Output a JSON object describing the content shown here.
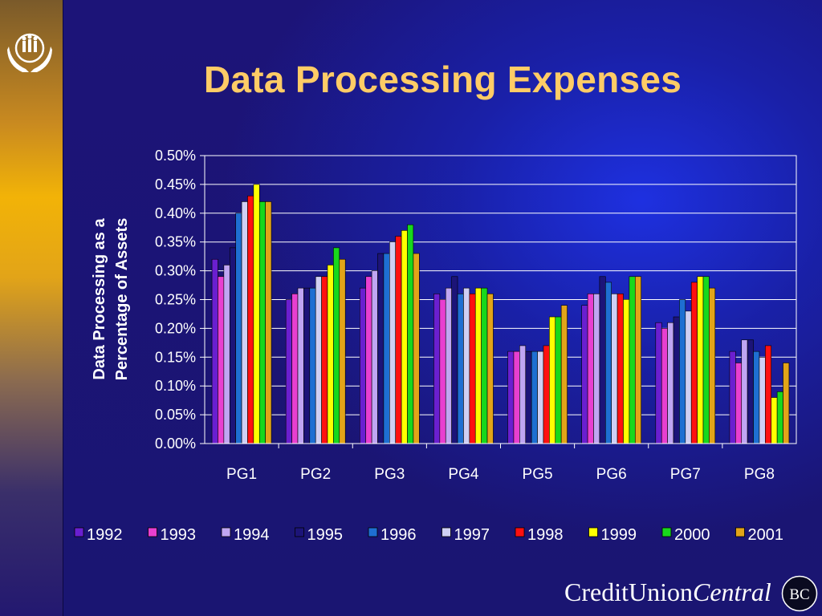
{
  "slide": {
    "title": "Data Processing Expenses",
    "brand_part1": "CreditUnion",
    "brand_part2": "Central",
    "brand_badge": "BC",
    "logo_icon": "hands-family-icon"
  },
  "chart_data": {
    "type": "bar",
    "title": "",
    "xlabel": "",
    "ylabel": "Data Processing as a Percentage of Assets",
    "ylabel_lines": [
      "Data Processing as a",
      "Percentage of Assets"
    ],
    "ylim": [
      0,
      0.5
    ],
    "ytick_step": 0.05,
    "ytick_labels": [
      "0.00%",
      "0.05%",
      "0.10%",
      "0.15%",
      "0.20%",
      "0.25%",
      "0.30%",
      "0.35%",
      "0.40%",
      "0.45%",
      "0.50%"
    ],
    "grid": "horizontal",
    "legend_position": "bottom",
    "categories": [
      "PG1",
      "PG2",
      "PG3",
      "PG4",
      "PG5",
      "PG6",
      "PG7",
      "PG8"
    ],
    "series": [
      {
        "name": "1992",
        "color": "#6a1fd0",
        "values": [
          0.32,
          0.25,
          0.27,
          0.26,
          0.16,
          0.24,
          0.21,
          0.16
        ]
      },
      {
        "name": "1993",
        "color": "#e83fd0",
        "values": [
          0.29,
          0.26,
          0.29,
          0.25,
          0.16,
          0.26,
          0.2,
          0.14
        ]
      },
      {
        "name": "1994",
        "color": "#c0a6f2",
        "values": [
          0.31,
          0.27,
          0.3,
          0.27,
          0.17,
          0.26,
          0.21,
          0.18
        ]
      },
      {
        "name": "1995",
        "color": "#1c1478",
        "values": [
          0.34,
          0.27,
          0.33,
          0.29,
          0.16,
          0.29,
          0.22,
          0.18
        ]
      },
      {
        "name": "1996",
        "color": "#1e6fd2",
        "values": [
          0.4,
          0.27,
          0.33,
          0.26,
          0.16,
          0.28,
          0.25,
          0.16
        ]
      },
      {
        "name": "1997",
        "color": "#cfcff4",
        "values": [
          0.42,
          0.29,
          0.35,
          0.27,
          0.16,
          0.26,
          0.23,
          0.15
        ]
      },
      {
        "name": "1998",
        "color": "#ff1010",
        "values": [
          0.43,
          0.29,
          0.36,
          0.26,
          0.17,
          0.26,
          0.28,
          0.17
        ]
      },
      {
        "name": "1999",
        "color": "#ffff00",
        "values": [
          0.45,
          0.31,
          0.37,
          0.27,
          0.22,
          0.25,
          0.29,
          0.08
        ]
      },
      {
        "name": "2000",
        "color": "#18d81c",
        "values": [
          0.42,
          0.34,
          0.38,
          0.27,
          0.22,
          0.29,
          0.29,
          0.09
        ]
      },
      {
        "name": "2001",
        "color": "#e2a418",
        "values": [
          0.42,
          0.32,
          0.33,
          0.26,
          0.24,
          0.29,
          0.27,
          0.14
        ]
      }
    ]
  }
}
